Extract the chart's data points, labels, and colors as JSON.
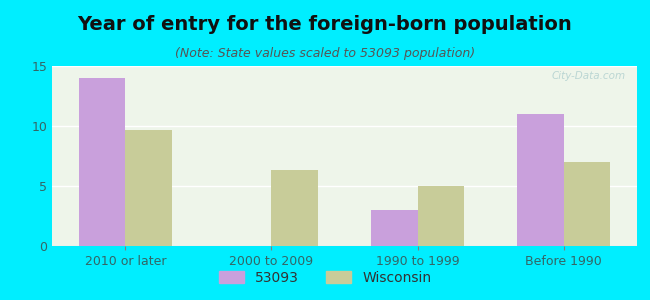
{
  "title": "Year of entry for the foreign-born population",
  "subtitle": "(Note: State values scaled to 53093 population)",
  "categories": [
    "2010 or later",
    "2000 to 2009",
    "1990 to 1999",
    "Before 1990"
  ],
  "series_53093": [
    14.0,
    0.0,
    3.0,
    11.0
  ],
  "series_wisconsin": [
    9.7,
    6.3,
    5.0,
    7.0
  ],
  "color_53093": "#c9a0dc",
  "color_wisconsin": "#c8cc99",
  "background_outer": "#00eeff",
  "background_inner": "#eef5ea",
  "ylim": [
    0,
    15
  ],
  "yticks": [
    0,
    5,
    10,
    15
  ],
  "legend_53093": "53093",
  "legend_wisconsin": "Wisconsin",
  "bar_width": 0.32,
  "title_fontsize": 14,
  "subtitle_fontsize": 9,
  "tick_fontsize": 9,
  "legend_fontsize": 10,
  "axis_color": "#336666",
  "watermark": "City-Data.com"
}
